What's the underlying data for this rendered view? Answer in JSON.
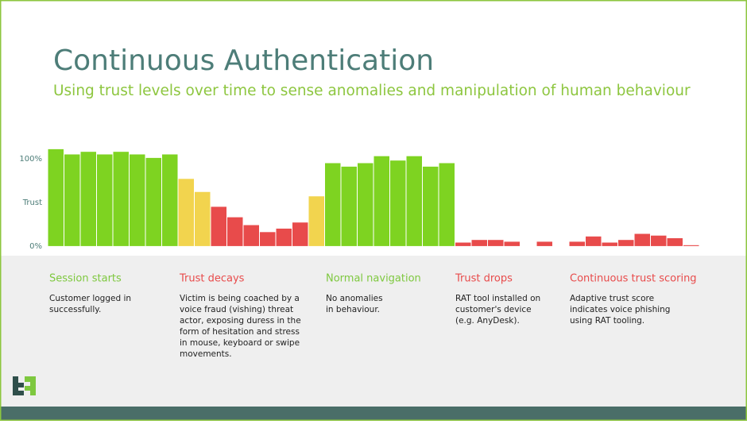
{
  "chart_data": {
    "type": "bar",
    "title": "Continuous Authentication",
    "subtitle": "Using trust levels over time to sense anomalies and manipulation of human behaviour",
    "values": [
      111,
      105,
      108,
      105,
      108,
      105,
      101,
      105,
      77,
      62,
      45,
      33,
      24,
      16,
      20,
      27,
      57,
      95,
      91,
      95,
      103,
      98,
      103,
      91,
      95,
      4,
      7,
      7,
      5,
      0,
      5,
      0,
      5,
      11,
      4,
      7,
      14,
      12,
      9,
      1
    ],
    "colors": [
      "#7ed321",
      "#7ed321",
      "#7ed321",
      "#7ed321",
      "#7ed321",
      "#7ed321",
      "#7ed321",
      "#7ed321",
      "#f2d44e",
      "#f2d44e",
      "#e84b4b",
      "#e84b4b",
      "#e84b4b",
      "#e84b4b",
      "#e84b4b",
      "#e84b4b",
      "#f2d44e",
      "#7ed321",
      "#7ed321",
      "#7ed321",
      "#7ed321",
      "#7ed321",
      "#7ed321",
      "#7ed321",
      "#7ed321",
      "#e84b4b",
      "#e84b4b",
      "#e84b4b",
      "#e84b4b",
      "#e84b4b",
      "#e84b4b",
      "#e84b4b",
      "#e84b4b",
      "#e84b4b",
      "#e84b4b",
      "#e84b4b",
      "#e84b4b",
      "#e84b4b",
      "#e84b4b",
      "#e84b4b"
    ],
    "ylim": [
      -11,
      125
    ],
    "yticks": [
      {
        "value": 100,
        "label": "100%"
      },
      {
        "value": 50,
        "label": "Trust"
      },
      {
        "value": 0,
        "label": "0%"
      }
    ],
    "phases": [
      {
        "title": "Session starts",
        "color": "#7ec83f",
        "lines": [
          "Customer logged in",
          "successfully."
        ]
      },
      {
        "title": "Trust decays",
        "color": "#e84b4b",
        "lines": [
          "Victim is being coached by a",
          "voice fraud (vishing) threat",
          "actor, exposing duress in the",
          "form of hesitation and stress",
          "in mouse, keyboard or swipe",
          "movements."
        ]
      },
      {
        "title": "Normal navigation",
        "color": "#7ec83f",
        "lines": [
          "No anomalies",
          "in behaviour."
        ]
      },
      {
        "title": "Trust drops",
        "color": "#e84b4b",
        "lines": [
          "RAT tool installed on",
          "customer's device",
          "(e.g. AnyDesk)."
        ]
      },
      {
        "title": "Continuous trust scoring",
        "color": "#e84b4b",
        "lines": [
          "Adaptive trust score",
          "indicates voice phishing",
          "using RAT tooling."
        ]
      }
    ]
  }
}
